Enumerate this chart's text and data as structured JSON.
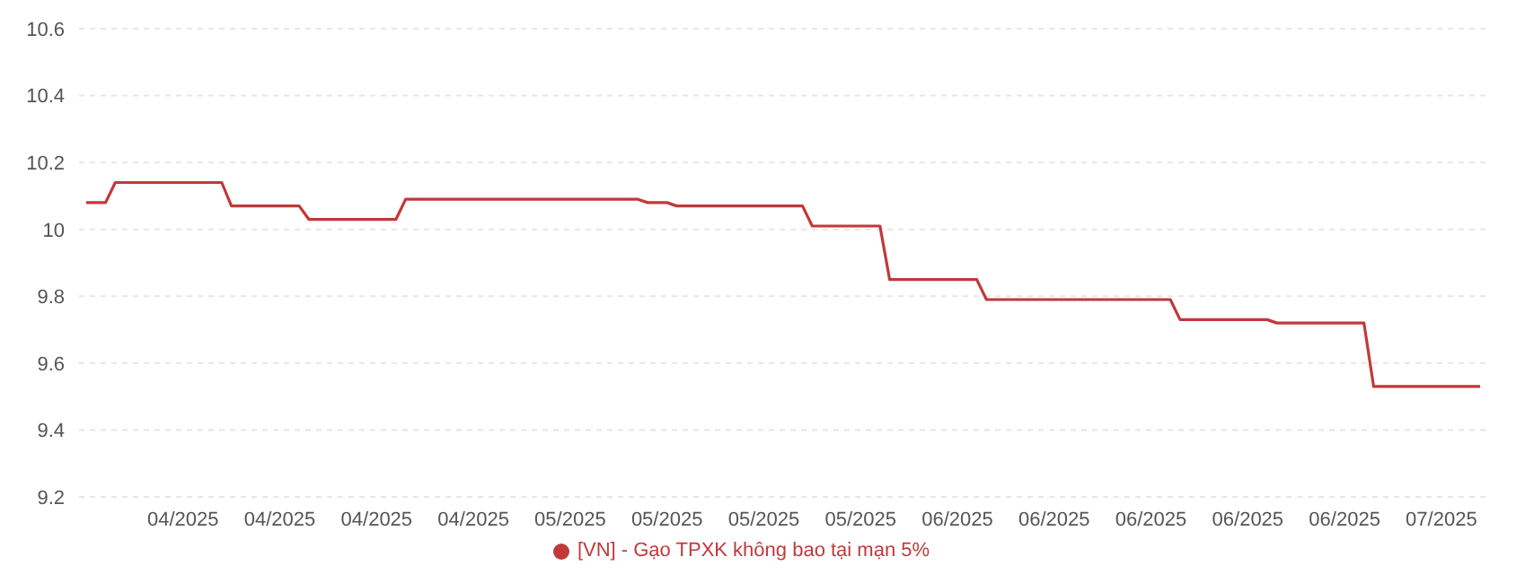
{
  "chart_data": {
    "type": "line",
    "categories": [
      null,
      null,
      null,
      null,
      null,
      null,
      null,
      null,
      null,
      null,
      "04/2025",
      null,
      null,
      null,
      null,
      null,
      null,
      null,
      null,
      null,
      "04/2025",
      null,
      null,
      null,
      null,
      null,
      null,
      null,
      null,
      null,
      "04/2025",
      null,
      null,
      null,
      null,
      null,
      null,
      null,
      null,
      null,
      "04/2025",
      null,
      null,
      null,
      null,
      null,
      null,
      null,
      null,
      null,
      "05/2025",
      null,
      null,
      null,
      null,
      null,
      null,
      null,
      null,
      null,
      "05/2025",
      null,
      null,
      null,
      null,
      null,
      null,
      null,
      null,
      null,
      "05/2025",
      null,
      null,
      null,
      null,
      null,
      null,
      null,
      null,
      null,
      "05/2025",
      null,
      null,
      null,
      null,
      null,
      null,
      null,
      null,
      null,
      "06/2025",
      null,
      null,
      null,
      null,
      null,
      null,
      null,
      null,
      null,
      "06/2025",
      null,
      null,
      null,
      null,
      null,
      null,
      null,
      null,
      null,
      "06/2025",
      null,
      null,
      null,
      null,
      null,
      null,
      null,
      null,
      null,
      "06/2025",
      null,
      null,
      null,
      null,
      null,
      null,
      null,
      null,
      null,
      "06/2025",
      null,
      null,
      null,
      null,
      null,
      null,
      null,
      null,
      null,
      "07/2025",
      null,
      null,
      null,
      null
    ],
    "series": [
      {
        "name": "[VN] - Gạo TPXK không bao tại mạn 5%",
        "color": "#c0393b",
        "values": [
          10.08,
          10.08,
          10.08,
          10.14,
          10.14,
          10.14,
          10.14,
          10.14,
          10.14,
          10.14,
          10.14,
          10.14,
          10.14,
          10.14,
          10.14,
          10.07,
          10.07,
          10.07,
          10.07,
          10.07,
          10.07,
          10.07,
          10.07,
          10.03,
          10.03,
          10.03,
          10.03,
          10.03,
          10.03,
          10.03,
          10.03,
          10.03,
          10.03,
          10.09,
          10.09,
          10.09,
          10.09,
          10.09,
          10.09,
          10.09,
          10.09,
          10.09,
          10.09,
          10.09,
          10.09,
          10.09,
          10.09,
          10.09,
          10.09,
          10.09,
          10.09,
          10.09,
          10.09,
          10.09,
          10.09,
          10.09,
          10.09,
          10.09,
          10.08,
          10.08,
          10.08,
          10.07,
          10.07,
          10.07,
          10.07,
          10.07,
          10.07,
          10.07,
          10.07,
          10.07,
          10.07,
          10.07,
          10.07,
          10.07,
          10.07,
          10.01,
          10.01,
          10.01,
          10.01,
          10.01,
          10.01,
          10.01,
          10.01,
          9.85,
          9.85,
          9.85,
          9.85,
          9.85,
          9.85,
          9.85,
          9.85,
          9.85,
          9.85,
          9.79,
          9.79,
          9.79,
          9.79,
          9.79,
          9.79,
          9.79,
          9.79,
          9.79,
          9.79,
          9.79,
          9.79,
          9.79,
          9.79,
          9.79,
          9.79,
          9.79,
          9.79,
          9.79,
          9.79,
          9.73,
          9.73,
          9.73,
          9.73,
          9.73,
          9.73,
          9.73,
          9.73,
          9.73,
          9.73,
          9.72,
          9.72,
          9.72,
          9.72,
          9.72,
          9.72,
          9.72,
          9.72,
          9.72,
          9.72,
          9.53,
          9.53,
          9.53,
          9.53,
          9.53,
          9.53,
          9.53,
          9.53,
          9.53,
          9.53,
          9.53,
          9.53
        ]
      }
    ],
    "ylim": [
      9.2,
      10.6
    ],
    "yticks": [
      9.2,
      9.4,
      9.6,
      9.8,
      10,
      10.2,
      10.4,
      10.6
    ],
    "grid": "y",
    "legend": "bottom",
    "marker": "none",
    "line_style": "solid"
  }
}
